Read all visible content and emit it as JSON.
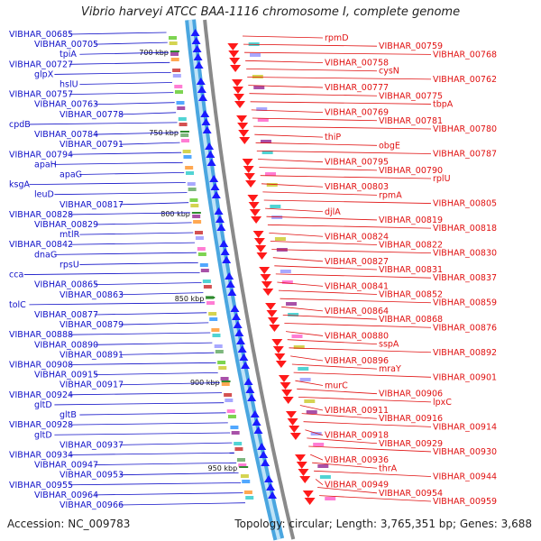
{
  "title": "Vibrio harveyi ATCC BAA-1116 chromosome I, complete genome",
  "footer": {
    "accession": "Accession: NC_009783",
    "stats": "Topology: circular; Length: 3,765,351 bp; Genes: 3,688"
  },
  "colors": {
    "left_labels": "#1010c8",
    "right_labels": "#e01010",
    "outer_ring": "#4aa6e0",
    "inner_ring": "#8a8a8a",
    "forward_arrows": "#1a1aff",
    "reverse_arrows": "#ff1a1a",
    "scale_ticks": "#2e8b2e"
  },
  "scale_marks": [
    "700 kbp",
    "750 kbp",
    "800 kbp",
    "850 kbp",
    "900 kbp",
    "950 kbp"
  ],
  "left_labels": [
    "VIBHAR_00685",
    "VIBHAR_00705",
    "tpiA",
    "VIBHAR_00727",
    "glpX",
    "hslU",
    "VIBHAR_00757",
    "VIBHAR_00763",
    "VIBHAR_00778",
    "cpdB",
    "VIBHAR_00784",
    "VIBHAR_00791",
    "VIBHAR_00794",
    "apaH",
    "apaG",
    "ksgA",
    "leuD",
    "VIBHAR_00817",
    "VIBHAR_00828",
    "VIBHAR_00829",
    "mtlR",
    "VIBHAR_00842",
    "dnaG",
    "rpsU",
    "cca",
    "VIBHAR_00865",
    "VIBHAR_00863",
    "tolC",
    "VIBHAR_00877",
    "VIBHAR_00879",
    "VIBHAR_00888",
    "VIBHAR_00890",
    "VIBHAR_00891",
    "VIBHAR_00908",
    "VIBHAR_00915",
    "VIBHAR_00917",
    "VIBHAR_00924",
    "gltD",
    "gltB",
    "VIBHAR_00928",
    "gltD",
    "VIBHAR_00937",
    "VIBHAR_00934",
    "VIBHAR_00947",
    "VIBHAR_00953",
    "VIBHAR_00955",
    "VIBHAR_00964",
    "VIBHAR_00966"
  ],
  "right_labels": [
    "rpmD",
    "VIBHAR_00759",
    "VIBHAR_00768",
    "VIBHAR_00758",
    "cysN",
    "VIBHAR_00762",
    "VIBHAR_00777",
    "VIBHAR_00775",
    "tbpA",
    "VIBHAR_00769",
    "VIBHAR_00781",
    "VIBHAR_00780",
    "thiP",
    "obgE",
    "VIBHAR_00787",
    "VIBHAR_00795",
    "VIBHAR_00790",
    "rplU",
    "VIBHAR_00803",
    "rpmA",
    "VIBHAR_00805",
    "djlA",
    "VIBHAR_00819",
    "VIBHAR_00818",
    "VIBHAR_00824",
    "VIBHAR_00822",
    "VIBHAR_00830",
    "VIBHAR_00827",
    "VIBHAR_00831",
    "VIBHAR_00837",
    "VIBHAR_00841",
    "VIBHAR_00852",
    "VIBHAR_00859",
    "VIBHAR_00864",
    "VIBHAR_00868",
    "VIBHAR_00876",
    "VIBHAR_00880",
    "sspA",
    "VIBHAR_00892",
    "VIBHAR_00896",
    "mraY",
    "VIBHAR_00901",
    "murC",
    "VIBHAR_00906",
    "lpxC",
    "VIBHAR_00911",
    "VIBHAR_00916",
    "VIBHAR_00914",
    "VIBHAR_00918",
    "VIBHAR_00929",
    "VIBHAR_00930",
    "VIBHAR_00936",
    "thrA",
    "VIBHAR_00944",
    "VIBHAR_00949",
    "VIBHAR_00954",
    "VIBHAR_00959"
  ]
}
